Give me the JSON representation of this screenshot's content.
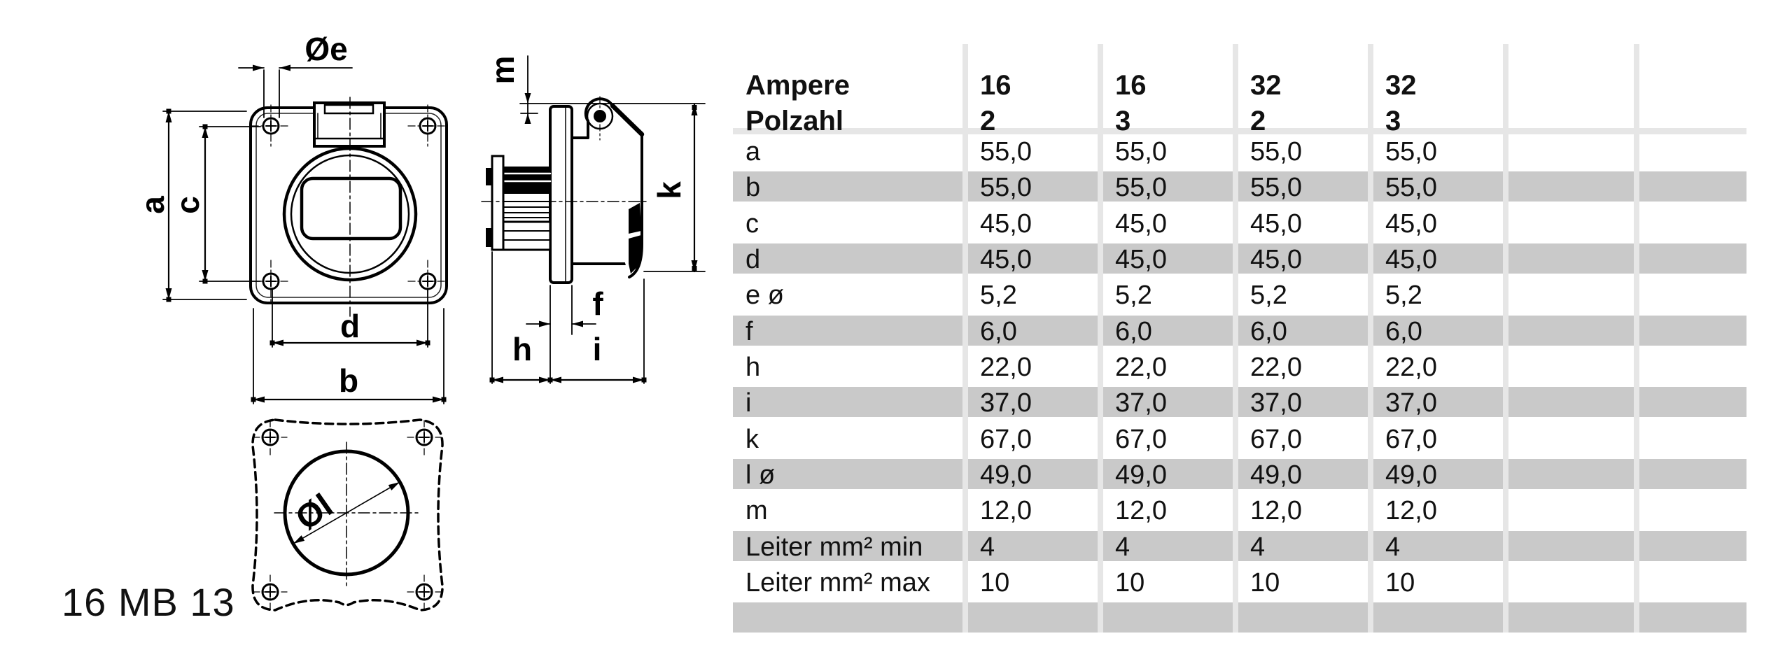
{
  "part_number": "16 MB 13",
  "drawing": {
    "front_view": {
      "dim_a": "a",
      "dim_c": "c",
      "dim_b": "b",
      "dim_d": "d",
      "dim_oe": "Øe"
    },
    "side_view": {
      "dim_m": "m",
      "dim_k": "k",
      "dim_f": "f",
      "dim_h": "h",
      "dim_i": "i"
    },
    "bottom_view": {
      "dim_ol": "Øl"
    }
  },
  "table": {
    "header": {
      "label_lines": "Ampere\nPolzahl",
      "columns": [
        "16\n2",
        "16\n3",
        "32\n2",
        "32\n3",
        "",
        ""
      ]
    },
    "rows": [
      [
        "a",
        "55,0",
        "55,0",
        "55,0",
        "55,0",
        "",
        ""
      ],
      [
        "b",
        "55,0",
        "55,0",
        "55,0",
        "55,0",
        "",
        ""
      ],
      [
        "c",
        "45,0",
        "45,0",
        "45,0",
        "45,0",
        "",
        ""
      ],
      [
        "d",
        "45,0",
        "45,0",
        "45,0",
        "45,0",
        "",
        ""
      ],
      [
        "e ø",
        "5,2",
        "5,2",
        "5,2",
        "5,2",
        "",
        ""
      ],
      [
        "f",
        "6,0",
        "6,0",
        "6,0",
        "6,0",
        "",
        ""
      ],
      [
        "h",
        "22,0",
        "22,0",
        "22,0",
        "22,0",
        "",
        ""
      ],
      [
        "i",
        "37,0",
        "37,0",
        "37,0",
        "37,0",
        "",
        ""
      ],
      [
        "k",
        "67,0",
        "67,0",
        "67,0",
        "67,0",
        "",
        ""
      ],
      [
        "l ø",
        "49,0",
        "49,0",
        "49,0",
        "49,0",
        "",
        ""
      ],
      [
        "m",
        "12,0",
        "12,0",
        "12,0",
        "12,0",
        "",
        ""
      ],
      [
        "Leiter mm² min",
        "4",
        "4",
        "4",
        "4",
        "",
        ""
      ],
      [
        "Leiter mm² max",
        "10",
        "10",
        "10",
        "10",
        "",
        ""
      ],
      [
        "",
        "",
        "",
        "",
        "",
        "",
        ""
      ]
    ]
  },
  "colors": {
    "row_stripe": "#c9c9c9",
    "grid_light": "#e6e6e6",
    "line": "#000000",
    "text": "#111111"
  }
}
